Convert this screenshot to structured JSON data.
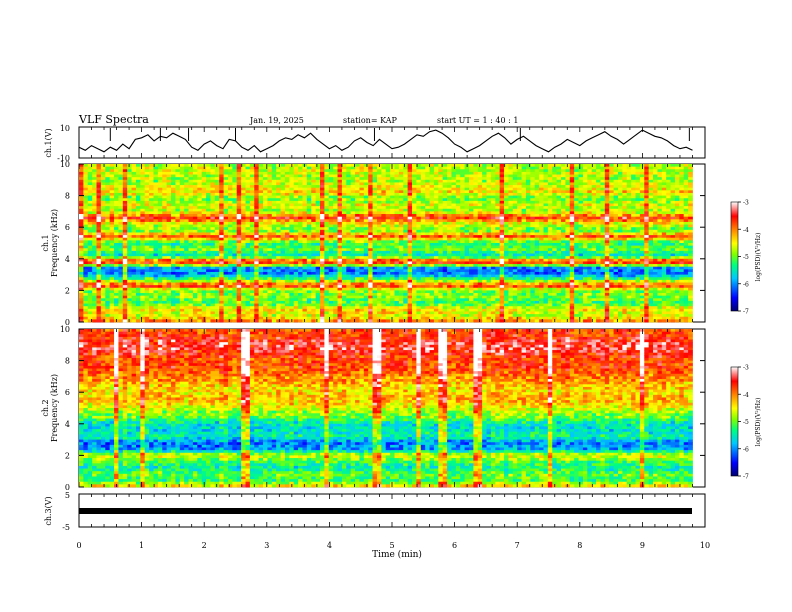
{
  "header": {
    "title": "VLF Spectra",
    "date": "Jan. 19, 2025",
    "station": "station= KAP",
    "start_ut": "start  UT =   1 : 40 : 1"
  },
  "chart_data": [
    {
      "id": "ch1-voltage",
      "type": "line",
      "ylabel": "ch.1(V)",
      "ylim": [
        -10,
        10
      ],
      "yticks": [
        -10,
        10
      ],
      "x": [
        0,
        0.1,
        0.2,
        0.3,
        0.4,
        0.5,
        0.6,
        0.7,
        0.8,
        0.9,
        1.0,
        1.1,
        1.2,
        1.3,
        1.4,
        1.5,
        1.6,
        1.7,
        1.8,
        1.9,
        2.0,
        2.1,
        2.2,
        2.3,
        2.4,
        2.5,
        2.6,
        2.7,
        2.8,
        2.9,
        3.0,
        3.1,
        3.2,
        3.3,
        3.4,
        3.5,
        3.6,
        3.7,
        3.8,
        3.9,
        4.0,
        4.1,
        4.2,
        4.3,
        4.4,
        4.5,
        4.6,
        4.7,
        4.8,
        4.9,
        5.0,
        5.1,
        5.2,
        5.3,
        5.4,
        5.5,
        5.6,
        5.7,
        5.8,
        5.9,
        6.0,
        6.1,
        6.2,
        6.3,
        6.4,
        6.5,
        6.6,
        6.7,
        6.8,
        6.9,
        7.0,
        7.1,
        7.2,
        7.3,
        7.4,
        7.5,
        7.6,
        7.7,
        7.8,
        7.9,
        8.0,
        8.1,
        8.2,
        8.3,
        8.4,
        8.5,
        8.6,
        8.7,
        8.8,
        8.9,
        9.0,
        9.1,
        9.2,
        9.3,
        9.4,
        9.5,
        9.6,
        9.7,
        9.8
      ],
      "values": [
        -3,
        -5,
        -2,
        -4,
        -6,
        -3,
        -5,
        -1,
        -4,
        2,
        3,
        5,
        1,
        4,
        3,
        6,
        4,
        2,
        -3,
        -5,
        -1,
        1,
        -2,
        -4,
        2,
        1,
        -3,
        -5,
        -2,
        -6,
        -4,
        -2,
        1,
        3,
        2,
        5,
        3,
        6,
        2,
        -1,
        -4,
        -2,
        -5,
        -3,
        1,
        3,
        0,
        -2,
        2,
        -1,
        -4,
        -3,
        -1,
        2,
        5,
        4,
        7,
        8,
        6,
        3,
        -1,
        -3,
        -6,
        -4,
        -2,
        1,
        4,
        6,
        3,
        -1,
        2,
        4,
        1,
        -2,
        -4,
        -6,
        -3,
        -1,
        2,
        0,
        -2,
        1,
        3,
        5,
        7,
        4,
        2,
        -1,
        2,
        5,
        8,
        6,
        4,
        3,
        1,
        -2,
        -4,
        -3,
        -5
      ],
      "spikes": [
        0.5,
        1.3,
        1.75,
        2.5,
        4.72,
        7.05,
        9.75
      ]
    },
    {
      "id": "ch1-spectrogram",
      "type": "heatmap",
      "ylabel": "ch.1\nFrequency  (kHz)",
      "ylim": [
        0,
        10
      ],
      "yticks": [
        0,
        2,
        4,
        6,
        8,
        10
      ],
      "xlim": [
        0,
        9.8
      ],
      "band_log_psd": [
        [
          0,
          -4.0
        ],
        [
          0.4,
          -4.6
        ],
        [
          0.8,
          -4.4
        ],
        [
          1.2,
          -5.2
        ],
        [
          1.6,
          -4.9
        ],
        [
          2.0,
          -5.0
        ],
        [
          2.3,
          -3.6
        ],
        [
          2.6,
          -4.8
        ],
        [
          3.0,
          -6.0
        ],
        [
          3.4,
          -6.1
        ],
        [
          3.8,
          -3.4
        ],
        [
          4.2,
          -5.6
        ],
        [
          4.6,
          -5.0
        ],
        [
          5.0,
          -5.3
        ],
        [
          5.4,
          -3.8
        ],
        [
          5.8,
          -5.0
        ],
        [
          6.2,
          -4.6
        ],
        [
          6.6,
          -3.6
        ],
        [
          7.0,
          -4.8
        ],
        [
          7.4,
          -4.6
        ],
        [
          7.8,
          -5.0
        ],
        [
          8.2,
          -4.4
        ],
        [
          8.6,
          -4.6
        ],
        [
          9.0,
          -4.8
        ],
        [
          9.4,
          -4.7
        ],
        [
          10,
          -4.7
        ]
      ]
    },
    {
      "id": "ch2-spectrogram",
      "type": "heatmap",
      "ylabel": "ch.2\nFrequency  (kHz)",
      "ylim": [
        0,
        10
      ],
      "yticks": [
        0,
        2,
        4,
        6,
        8,
        10
      ],
      "xlim": [
        0,
        9.8
      ],
      "band_log_psd": [
        [
          0,
          -4.2
        ],
        [
          0.4,
          -5.2
        ],
        [
          0.8,
          -5.0
        ],
        [
          1.2,
          -5.5
        ],
        [
          1.6,
          -5.1
        ],
        [
          2.0,
          -4.6
        ],
        [
          2.4,
          -5.9
        ],
        [
          2.8,
          -6.1
        ],
        [
          3.2,
          -5.4
        ],
        [
          3.6,
          -5.6
        ],
        [
          4.0,
          -5.6
        ],
        [
          4.4,
          -5.0
        ],
        [
          4.8,
          -4.8
        ],
        [
          5.2,
          -4.4
        ],
        [
          5.6,
          -4.2
        ],
        [
          6.0,
          -4.4
        ],
        [
          6.4,
          -4.3
        ],
        [
          6.8,
          -4.1
        ],
        [
          7.2,
          -3.9
        ],
        [
          7.6,
          -3.7
        ],
        [
          8.0,
          -3.8
        ],
        [
          8.4,
          -3.6
        ],
        [
          8.8,
          -3.4
        ],
        [
          9.2,
          -3.5
        ],
        [
          9.6,
          -3.7
        ],
        [
          10,
          -3.8
        ]
      ]
    },
    {
      "id": "ch3-voltage",
      "type": "line",
      "ylabel": "ch.3(V)",
      "ylim": [
        -5,
        5
      ],
      "yticks": [
        -5,
        0,
        5
      ],
      "x": [
        0,
        9.8
      ],
      "values": [
        0,
        0
      ]
    }
  ],
  "x_axis": {
    "label": "Time  (min)",
    "range": [
      0,
      10
    ],
    "ticks": [
      "0",
      "1",
      "2",
      "3",
      "4",
      "5",
      "6",
      "7",
      "8",
      "9",
      "10"
    ]
  },
  "colorbar": {
    "label": "log(PSD)(V²/Hz)",
    "range": [
      -7,
      -3
    ],
    "ticks": [
      "-3",
      "-4",
      "-5",
      "-6",
      "-7"
    ],
    "stops": [
      "#000070",
      "#0000ff",
      "#00c8ff",
      "#00ff80",
      "#80ff00",
      "#ffff00",
      "#ff8000",
      "#ff0000",
      "#ffffff"
    ]
  }
}
